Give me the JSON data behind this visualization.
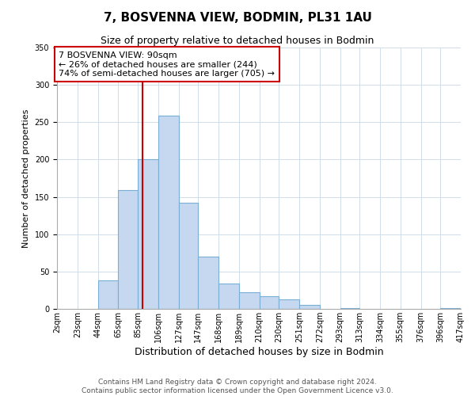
{
  "title": "7, BOSVENNA VIEW, BODMIN, PL31 1AU",
  "subtitle": "Size of property relative to detached houses in Bodmin",
  "xlabel": "Distribution of detached houses by size in Bodmin",
  "ylabel": "Number of detached properties",
  "bar_color": "#c5d8f0",
  "bar_edge_color": "#7baed4",
  "background_color": "#ffffff",
  "ylim": [
    0,
    350
  ],
  "yticks": [
    0,
    50,
    100,
    150,
    200,
    250,
    300,
    350
  ],
  "bin_edges": [
    2,
    23,
    44,
    65,
    85,
    106,
    127,
    147,
    168,
    189,
    210,
    230,
    251,
    272,
    293,
    313,
    334,
    355,
    376,
    396,
    417
  ],
  "bin_labels": [
    "2sqm",
    "23sqm",
    "44sqm",
    "65sqm",
    "85sqm",
    "106sqm",
    "127sqm",
    "147sqm",
    "168sqm",
    "189sqm",
    "210sqm",
    "230sqm",
    "251sqm",
    "272sqm",
    "293sqm",
    "313sqm",
    "334sqm",
    "355sqm",
    "376sqm",
    "396sqm",
    "417sqm"
  ],
  "counts": [
    0,
    0,
    38,
    159,
    200,
    259,
    142,
    70,
    34,
    22,
    17,
    13,
    5,
    0,
    1,
    0,
    0,
    0,
    0,
    1
  ],
  "vline_x": 90,
  "vline_color": "#cc0000",
  "annotation_text": "7 BOSVENNA VIEW: 90sqm\n← 26% of detached houses are smaller (244)\n74% of semi-detached houses are larger (705) →",
  "annotation_box_color": "#ffffff",
  "annotation_box_edge": "#cc0000",
  "footer_line1": "Contains HM Land Registry data © Crown copyright and database right 2024.",
  "footer_line2": "Contains public sector information licensed under the Open Government Licence v3.0.",
  "title_fontsize": 11,
  "subtitle_fontsize": 9,
  "xlabel_fontsize": 9,
  "ylabel_fontsize": 8,
  "tick_fontsize": 7,
  "annotation_fontsize": 8,
  "footer_fontsize": 6.5
}
